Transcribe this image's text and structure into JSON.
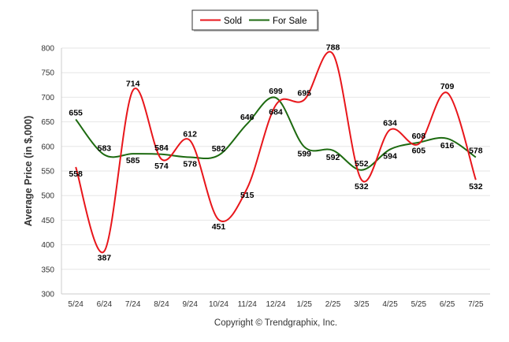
{
  "chart_data": {
    "type": "line",
    "categories": [
      "5/24",
      "6/24",
      "7/24",
      "8/24",
      "9/24",
      "10/24",
      "11/24",
      "12/24",
      "1/25",
      "2/25",
      "3/25",
      "4/25",
      "5/25",
      "6/25",
      "7/25"
    ],
    "series": [
      {
        "name": "Sold",
        "color": "#e8161b",
        "values": [
          558,
          387,
          714,
          574,
          612,
          451,
          515,
          684,
          695,
          788,
          532,
          634,
          605,
          709,
          532
        ]
      },
      {
        "name": "For Sale",
        "color": "#1d6a10",
        "values": [
          655,
          583,
          585,
          584,
          578,
          582,
          646,
          699,
          599,
          592,
          552,
          594,
          608,
          616,
          578
        ]
      }
    ],
    "ylabel": "Average Price (in $,000)",
    "ylim": [
      300,
      800
    ],
    "yticks": [
      300,
      350,
      400,
      450,
      500,
      550,
      600,
      650,
      700,
      750,
      800
    ],
    "grid": true,
    "legend_position": "top-center",
    "footer": "Copyright © Trendgraphix, Inc."
  }
}
